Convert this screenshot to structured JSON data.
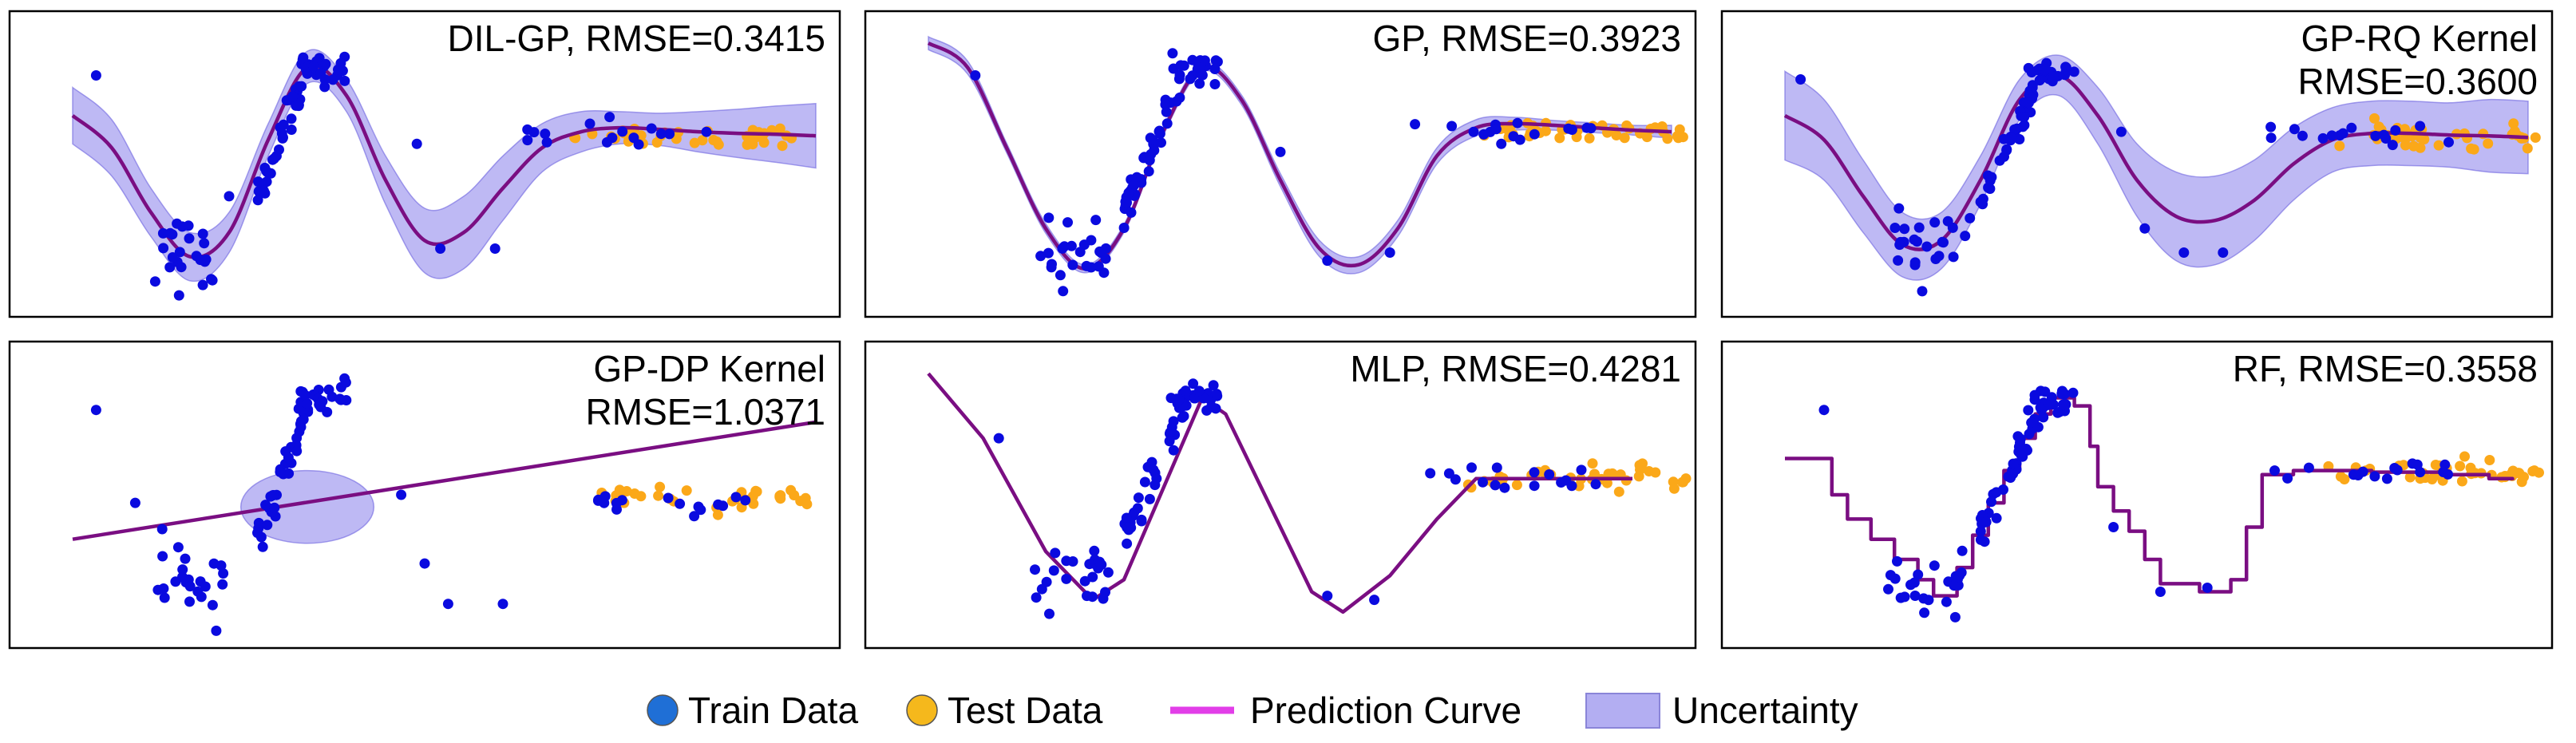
{
  "chart_data": [
    {
      "panel": "DIL-GP",
      "title_lines": [
        "DIL-GP, RMSE=0.3415"
      ],
      "type": "scatter",
      "xlim": [
        0,
        10
      ],
      "ylim": [
        -1.6,
        1.6
      ],
      "prediction": {
        "kind": "smooth",
        "x": [
          0.5,
          1,
          1.5,
          2,
          2.5,
          3,
          3.5,
          4,
          4.5,
          5,
          5.5,
          6,
          6.5,
          7,
          7.5,
          8,
          8.5,
          9,
          9.5,
          10
        ],
        "y": [
          0.6,
          0.2,
          -0.6,
          -1.15,
          -0.85,
          0.3,
          1.2,
          0.85,
          -0.2,
          -0.95,
          -0.85,
          -0.3,
          0.2,
          0.4,
          0.45,
          0.43,
          0.4,
          0.38,
          0.37,
          0.35
        ]
      },
      "uncertainty": {
        "kind": "band",
        "width": [
          0.35,
          0.35,
          0.3,
          0.3,
          0.25,
          0.2,
          0.2,
          0.2,
          0.3,
          0.4,
          0.45,
          0.4,
          0.3,
          0.25,
          0.2,
          0.2,
          0.25,
          0.3,
          0.35,
          0.4
        ]
      },
      "train": {
        "clusters": [
          [
            2.0,
            -1.1,
            24,
            0.45,
            0.22
          ],
          [
            3.2,
            0.4,
            40,
            0.35,
            0.9
          ],
          [
            3.7,
            1.2,
            22,
            0.3,
            0.1
          ],
          [
            7.5,
            0.38,
            16,
            1.2,
            0.08
          ]
        ],
        "points": [
          [
            0.8,
            1.1
          ],
          [
            2.5,
            -0.4
          ],
          [
            5.2,
            -1.05
          ],
          [
            5.9,
            -1.05
          ],
          [
            4.9,
            0.25
          ]
        ]
      },
      "test": {
        "clusters": [
          [
            8.3,
            0.35,
            40,
            1.4,
            0.07
          ]
        ]
      }
    },
    {
      "panel": "GP",
      "title_lines": [
        "GP, RMSE=0.3923"
      ],
      "type": "scatter",
      "xlim": [
        0,
        10
      ],
      "ylim": [
        -1.6,
        1.6
      ],
      "prediction": {
        "kind": "smooth",
        "x": [
          0.5,
          1,
          1.5,
          2,
          2.5,
          3,
          3.5,
          4,
          4.5,
          5,
          5.5,
          6,
          6.5,
          7,
          7.5,
          8,
          8.5,
          9,
          9.5,
          10
        ],
        "y": [
          1.5,
          1.2,
          0.2,
          -0.8,
          -1.3,
          -0.8,
          0.4,
          1.2,
          0.8,
          -0.2,
          -1.05,
          -1.25,
          -0.8,
          0.1,
          0.45,
          0.5,
          0.48,
          0.45,
          0.42,
          0.4
        ]
      },
      "uncertainty": {
        "kind": "band",
        "width": [
          0.08,
          0.08,
          0.06,
          0.06,
          0.05,
          0.05,
          0.05,
          0.05,
          0.06,
          0.08,
          0.1,
          0.1,
          0.1,
          0.1,
          0.1,
          0.08,
          0.06,
          0.06,
          0.06,
          0.08
        ]
      },
      "train": {
        "clusters": [
          [
            2.3,
            -1.1,
            24,
            0.5,
            0.22
          ],
          [
            3.4,
            0.3,
            40,
            0.4,
            0.9
          ],
          [
            3.9,
            1.2,
            22,
            0.3,
            0.1
          ],
          [
            7.9,
            0.42,
            16,
            1.2,
            0.08
          ]
        ],
        "points": [
          [
            1.1,
            1.1
          ],
          [
            5.0,
            0.15
          ],
          [
            5.6,
            -1.2
          ],
          [
            6.4,
            -1.1
          ]
        ]
      },
      "test": {
        "clusters": [
          [
            8.8,
            0.4,
            40,
            1.4,
            0.07
          ]
        ]
      }
    },
    {
      "panel": "GP-RQ Kernel",
      "title_lines": [
        "GP-RQ Kernel",
        "RMSE=0.3600"
      ],
      "type": "scatter",
      "xlim": [
        0,
        10
      ],
      "ylim": [
        -1.6,
        1.6
      ],
      "prediction": {
        "kind": "smooth",
        "x": [
          0.5,
          1,
          1.5,
          2,
          2.5,
          3,
          3.5,
          4,
          4.5,
          5,
          5.5,
          6,
          6.5,
          7,
          7.5,
          8,
          8.5,
          9,
          9.5,
          10
        ],
        "y": [
          0.6,
          0.3,
          -0.4,
          -1.0,
          -0.95,
          -0.2,
          0.8,
          1.1,
          0.6,
          -0.2,
          -0.65,
          -0.7,
          -0.45,
          0.0,
          0.3,
          0.38,
          0.38,
          0.36,
          0.35,
          0.33
        ]
      },
      "uncertainty": {
        "kind": "band",
        "width": [
          0.55,
          0.5,
          0.45,
          0.4,
          0.35,
          0.3,
          0.25,
          0.25,
          0.35,
          0.45,
          0.55,
          0.55,
          0.5,
          0.45,
          0.4,
          0.4,
          0.4,
          0.4,
          0.45,
          0.45
        ]
      },
      "train": {
        "clusters": [
          [
            2.4,
            -1.0,
            24,
            0.5,
            0.22
          ],
          [
            3.4,
            0.3,
            40,
            0.4,
            0.9
          ],
          [
            3.9,
            1.15,
            22,
            0.3,
            0.1
          ],
          [
            7.9,
            0.36,
            16,
            1.2,
            0.08
          ]
        ],
        "points": [
          [
            0.7,
            1.05
          ],
          [
            4.8,
            0.4
          ],
          [
            5.1,
            -0.8
          ],
          [
            5.6,
            -1.1
          ],
          [
            6.1,
            -1.1
          ]
        ]
      },
      "test": {
        "clusters": [
          [
            8.8,
            0.34,
            40,
            1.4,
            0.07
          ]
        ]
      }
    },
    {
      "panel": "GP-DP Kernel",
      "title_lines": [
        "GP-DP Kernel",
        "RMSE=1.0371"
      ],
      "type": "scatter",
      "xlim": [
        0,
        10
      ],
      "ylim": [
        -1.6,
        1.6
      ],
      "prediction": {
        "kind": "line",
        "x": [
          0.5,
          10
        ],
        "y": [
          -0.55,
          0.9
        ]
      },
      "uncertainty": {
        "kind": "ellipse",
        "cx": 3.5,
        "cy": -0.15,
        "rx": 0.85,
        "ry": 0.45
      },
      "train": {
        "clusters": [
          [
            2.0,
            -1.1,
            24,
            0.45,
            0.22
          ],
          [
            3.2,
            0.3,
            40,
            0.35,
            0.9
          ],
          [
            3.7,
            1.2,
            22,
            0.3,
            0.1
          ],
          [
            8.2,
            -0.1,
            16,
            1.2,
            0.08
          ]
        ],
        "points": [
          [
            0.8,
            1.05
          ],
          [
            1.3,
            -0.1
          ],
          [
            4.7,
            0.0
          ],
          [
            5.0,
            -0.85
          ],
          [
            5.3,
            -1.35
          ],
          [
            6.0,
            -1.35
          ]
        ]
      },
      "test": {
        "clusters": [
          [
            8.5,
            -0.05,
            40,
            1.4,
            0.07
          ]
        ]
      }
    },
    {
      "panel": "MLP",
      "title_lines": [
        "MLP, RMSE=0.4281"
      ],
      "type": "scatter",
      "xlim": [
        0,
        10
      ],
      "ylim": [
        -1.6,
        1.6
      ],
      "prediction": {
        "kind": "line",
        "x": [
          0.5,
          1.2,
          2.0,
          2.6,
          3.0,
          3.6,
          4.0,
          4.3,
          5.0,
          5.4,
          5.8,
          6.4,
          7.0,
          7.5,
          8.5,
          9.5
        ],
        "y": [
          1.5,
          0.7,
          -0.7,
          -1.3,
          -1.05,
          0.3,
          1.2,
          1.0,
          -0.4,
          -1.2,
          -1.45,
          -1.0,
          -0.3,
          0.2,
          0.2,
          0.2
        ]
      },
      "uncertainty": {
        "kind": "none"
      },
      "train": {
        "clusters": [
          [
            2.3,
            -1.1,
            24,
            0.5,
            0.22
          ],
          [
            3.4,
            0.3,
            40,
            0.4,
            0.9
          ],
          [
            3.9,
            1.2,
            22,
            0.3,
            0.1
          ],
          [
            7.9,
            0.2,
            16,
            1.2,
            0.08
          ]
        ],
        "points": [
          [
            1.4,
            0.7
          ],
          [
            5.6,
            -1.25
          ],
          [
            6.2,
            -1.3
          ]
        ]
      },
      "test": {
        "clusters": [
          [
            8.8,
            0.2,
            40,
            1.4,
            0.07
          ]
        ]
      }
    },
    {
      "panel": "RF",
      "title_lines": [
        "RF, RMSE=0.3558"
      ],
      "type": "scatter",
      "xlim": [
        0,
        10
      ],
      "ylim": [
        -1.6,
        1.6
      ],
      "prediction": {
        "kind": "steps",
        "x": [
          0.5,
          0.9,
          1.1,
          1.3,
          1.6,
          1.9,
          2.2,
          2.4,
          2.7,
          2.9,
          3.1,
          3.3,
          3.5,
          3.7,
          3.9,
          4.2,
          4.4,
          4.5,
          4.7,
          4.9,
          5.1,
          5.3,
          5.8,
          6.0,
          6.2,
          6.4,
          6.6,
          7.0,
          7.5,
          8.0,
          8.5,
          9.0,
          9.5,
          9.8
        ],
        "y": [
          0.45,
          0.45,
          0.0,
          -0.3,
          -0.55,
          -0.8,
          -1.05,
          -1.25,
          -0.9,
          -0.5,
          -0.1,
          0.3,
          0.7,
          1.0,
          1.2,
          1.1,
          0.6,
          0.1,
          -0.2,
          -0.45,
          -0.8,
          -1.1,
          -1.2,
          -1.2,
          -1.05,
          -0.4,
          0.25,
          0.3,
          0.3,
          0.28,
          0.28,
          0.25,
          0.2,
          0.18
        ]
      },
      "uncertainty": {
        "kind": "none"
      },
      "train": {
        "clusters": [
          [
            2.3,
            -1.1,
            24,
            0.5,
            0.22
          ],
          [
            3.4,
            0.3,
            40,
            0.4,
            0.9
          ],
          [
            3.9,
            1.15,
            22,
            0.3,
            0.1
          ],
          [
            7.9,
            0.28,
            16,
            1.2,
            0.08
          ]
        ],
        "points": [
          [
            1.0,
            1.05
          ],
          [
            4.7,
            -0.4
          ],
          [
            5.3,
            -1.2
          ],
          [
            5.9,
            -1.15
          ]
        ]
      },
      "test": {
        "clusters": [
          [
            8.8,
            0.28,
            40,
            1.4,
            0.07
          ]
        ]
      }
    }
  ],
  "legend": {
    "items": [
      {
        "label": "Train Data",
        "kind": "circle",
        "color": "#1f6fd6"
      },
      {
        "label": "Test Data",
        "kind": "circle",
        "color": "#f5b81c"
      },
      {
        "label": "Prediction Curve",
        "kind": "line",
        "color": "#e23ee8"
      },
      {
        "label": "Uncertainty",
        "kind": "rect",
        "color": "#b3aef2"
      }
    ]
  },
  "colors": {
    "train": "#0a0adf",
    "test": "#fba819",
    "prediction": "#7a0e82",
    "uncertainty": "#9b93ee",
    "frame": "#000000"
  }
}
